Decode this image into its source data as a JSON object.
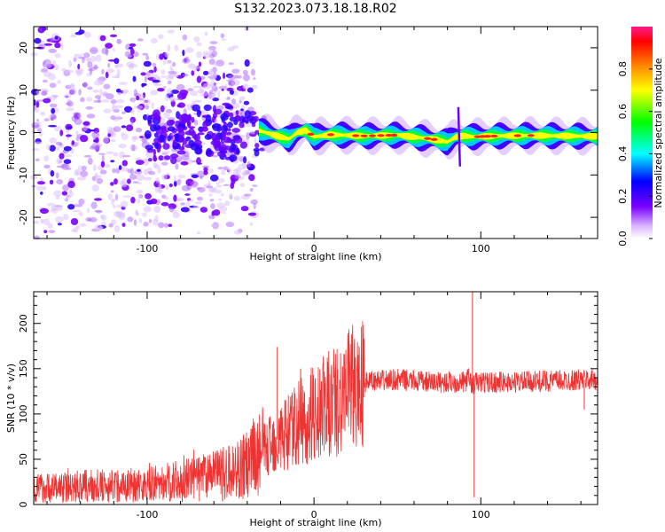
{
  "title": "S132.2023.073.18.18.R02",
  "chart_data": [
    {
      "type": "heatmap",
      "xlabel": "Height of straight line (km)",
      "ylabel": "Frequency (Hz)",
      "xlim": [
        -168,
        170
      ],
      "ylim": [
        -25,
        25
      ],
      "x_ticks": [
        -100,
        0,
        100
      ],
      "x_tick_labels": [
        "-100",
        "0",
        "100"
      ],
      "y_ticks": [
        -20,
        -10,
        0,
        10,
        20
      ],
      "y_tick_labels": [
        "-20",
        "-10",
        "0",
        "10",
        "20"
      ],
      "colorbar": {
        "label": "Normalized spectral amplitude",
        "range": [
          0,
          1
        ],
        "ticks": [
          0.0,
          0.2,
          0.4,
          0.6,
          0.8
        ],
        "tick_labels": [
          "0.0",
          "0.2",
          "0.4",
          "0.6",
          "0.8"
        ],
        "colormap": [
          "#ffffff",
          "#7a00ff",
          "#0000ff",
          "#00ffff",
          "#00ff00",
          "#ffff00",
          "#ff8000",
          "#ff0000",
          "#ff00aa"
        ]
      },
      "noise_region_x": [
        -168,
        -35
      ],
      "ridge": {
        "description_free": true,
        "x": [
          -33,
          -25,
          -20,
          -15,
          -10,
          -5,
          0,
          10,
          30,
          50,
          70,
          80,
          85,
          90,
          95,
          110,
          130,
          150,
          170
        ],
        "y": [
          0.5,
          -0.5,
          -1.0,
          -1.5,
          0.0,
          0.5,
          -1.0,
          -0.5,
          -0.8,
          -0.6,
          -1.5,
          -2.2,
          -1.0,
          -0.8,
          -1.0,
          -0.8,
          -0.7,
          -0.8,
          -0.9
        ]
      }
    },
    {
      "type": "line",
      "xlabel": "Height of straight line (km)",
      "ylabel": "SNR (10 * v/v)",
      "xlim": [
        -168,
        170
      ],
      "ylim": [
        0,
        235
      ],
      "x_ticks": [
        -100,
        0,
        100
      ],
      "x_tick_labels": [
        "-100",
        "0",
        "100"
      ],
      "y_ticks": [
        0,
        50,
        100,
        150,
        200
      ],
      "y_tick_labels": [
        "0",
        "50",
        "100",
        "150",
        "200"
      ],
      "color": "#ee3333",
      "envelope": {
        "x": [
          -168,
          -140,
          -100,
          -70,
          -50,
          -40,
          -30,
          -20,
          -10,
          0,
          10,
          20,
          30,
          50,
          70,
          90,
          93,
          95,
          97,
          100,
          120,
          150,
          170
        ],
        "y": [
          18,
          20,
          22,
          28,
          35,
          45,
          60,
          75,
          88,
          100,
          112,
          125,
          135,
          138,
          135,
          135,
          140,
          130,
          135,
          135,
          135,
          137,
          138
        ]
      },
      "spikes": [
        {
          "x": -22,
          "y": 174
        },
        {
          "x": -8,
          "y": 150
        },
        {
          "x": 95,
          "y": 235
        },
        {
          "x": 96,
          "y": 8
        },
        {
          "x": 162,
          "y": 105
        }
      ]
    }
  ]
}
